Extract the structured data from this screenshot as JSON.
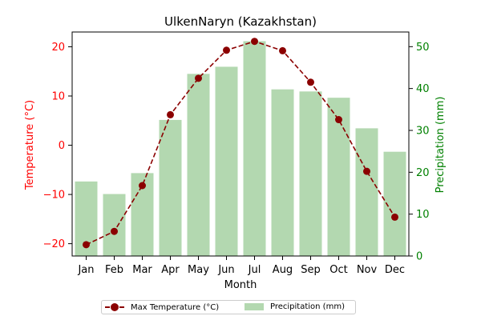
{
  "chart_data": {
    "type": "bar+line",
    "title": "UlkenNaryn (Kazakhstan)",
    "xlabel": "Month",
    "categories": [
      "Jan",
      "Feb",
      "Mar",
      "Apr",
      "May",
      "Jun",
      "Jul",
      "Aug",
      "Sep",
      "Oct",
      "Nov",
      "Dec"
    ],
    "left_axis": {
      "label": "Temperature (°C)",
      "color": "#ff0000",
      "ylim": [
        -22.5,
        23
      ],
      "ticks": [
        -20,
        -10,
        0,
        10,
        20
      ],
      "tick_labels": [
        "−20",
        "−10",
        "0",
        "10",
        "20"
      ]
    },
    "right_axis": {
      "label": "Precipitation (mm)",
      "color": "#008000",
      "ylim": [
        0,
        53.5
      ],
      "ticks": [
        0,
        10,
        20,
        30,
        40,
        50
      ],
      "tick_labels": [
        "0",
        "10",
        "20",
        "30",
        "40",
        "50"
      ]
    },
    "series": [
      {
        "name": "Max Temperature (°C)",
        "kind": "line",
        "axis": "left",
        "color": "#8b0000",
        "style": "dashed",
        "marker": "circle",
        "values": [
          -20.2,
          -17.5,
          -8.2,
          6.2,
          13.6,
          19.3,
          21.1,
          19.2,
          12.8,
          5.2,
          -5.3,
          -14.6
        ]
      },
      {
        "name": "Precipitation (mm)",
        "kind": "bar",
        "axis": "right",
        "color": "#b3d8b0",
        "values": [
          17.8,
          14.8,
          19.8,
          32.5,
          43.5,
          45.2,
          51.3,
          39.8,
          39.3,
          37.8,
          30.5,
          24.9
        ]
      }
    ],
    "legend": {
      "placement": "bottom-center",
      "entries": [
        "Max Temperature (°C)",
        "Precipitation (mm)"
      ]
    },
    "grid": false
  }
}
